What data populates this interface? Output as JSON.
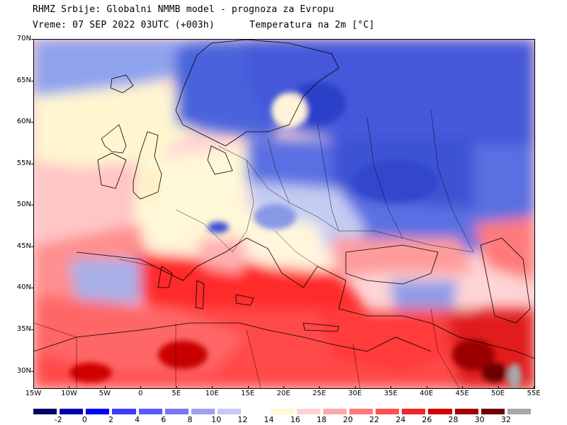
{
  "header": {
    "line1": "RHMZ Srbije: Globalni NMMB model - prognoza za Evropu",
    "line2": "Vreme: 07 SEP 2022 03UTC (+003h)",
    "field": "Temperatura na 2m [°C]"
  },
  "map": {
    "lat_labels": [
      "70N",
      "65N",
      "60N",
      "55N",
      "50N",
      "45N",
      "40N",
      "35N",
      "30N"
    ],
    "lon_labels": [
      "15W",
      "10W",
      "5W",
      "0",
      "5E",
      "10E",
      "15E",
      "20E",
      "25E",
      "30E",
      "35E",
      "40E",
      "45E",
      "50E",
      "55E"
    ],
    "lat_range": [
      28,
      70
    ],
    "lon_range": [
      -15,
      55
    ]
  },
  "legend": {
    "labels": [
      "-2",
      "0",
      "2",
      "4",
      "6",
      "8",
      "10",
      "12",
      "14",
      "16",
      "18",
      "20",
      "22",
      "24",
      "26",
      "28",
      "30",
      "32"
    ],
    "colors": [
      "#000066",
      "#0000b0",
      "#0000ff",
      "#3c3cff",
      "#5a5aff",
      "#7878f0",
      "#a0a0f0",
      "#c8c8f8",
      "#ffffff",
      "#fff8d0",
      "#ffd0d0",
      "#ffa8a8",
      "#ff7878",
      "#ff5050",
      "#f02828",
      "#d00000",
      "#a00000",
      "#700000",
      "#a8a8a8"
    ]
  }
}
